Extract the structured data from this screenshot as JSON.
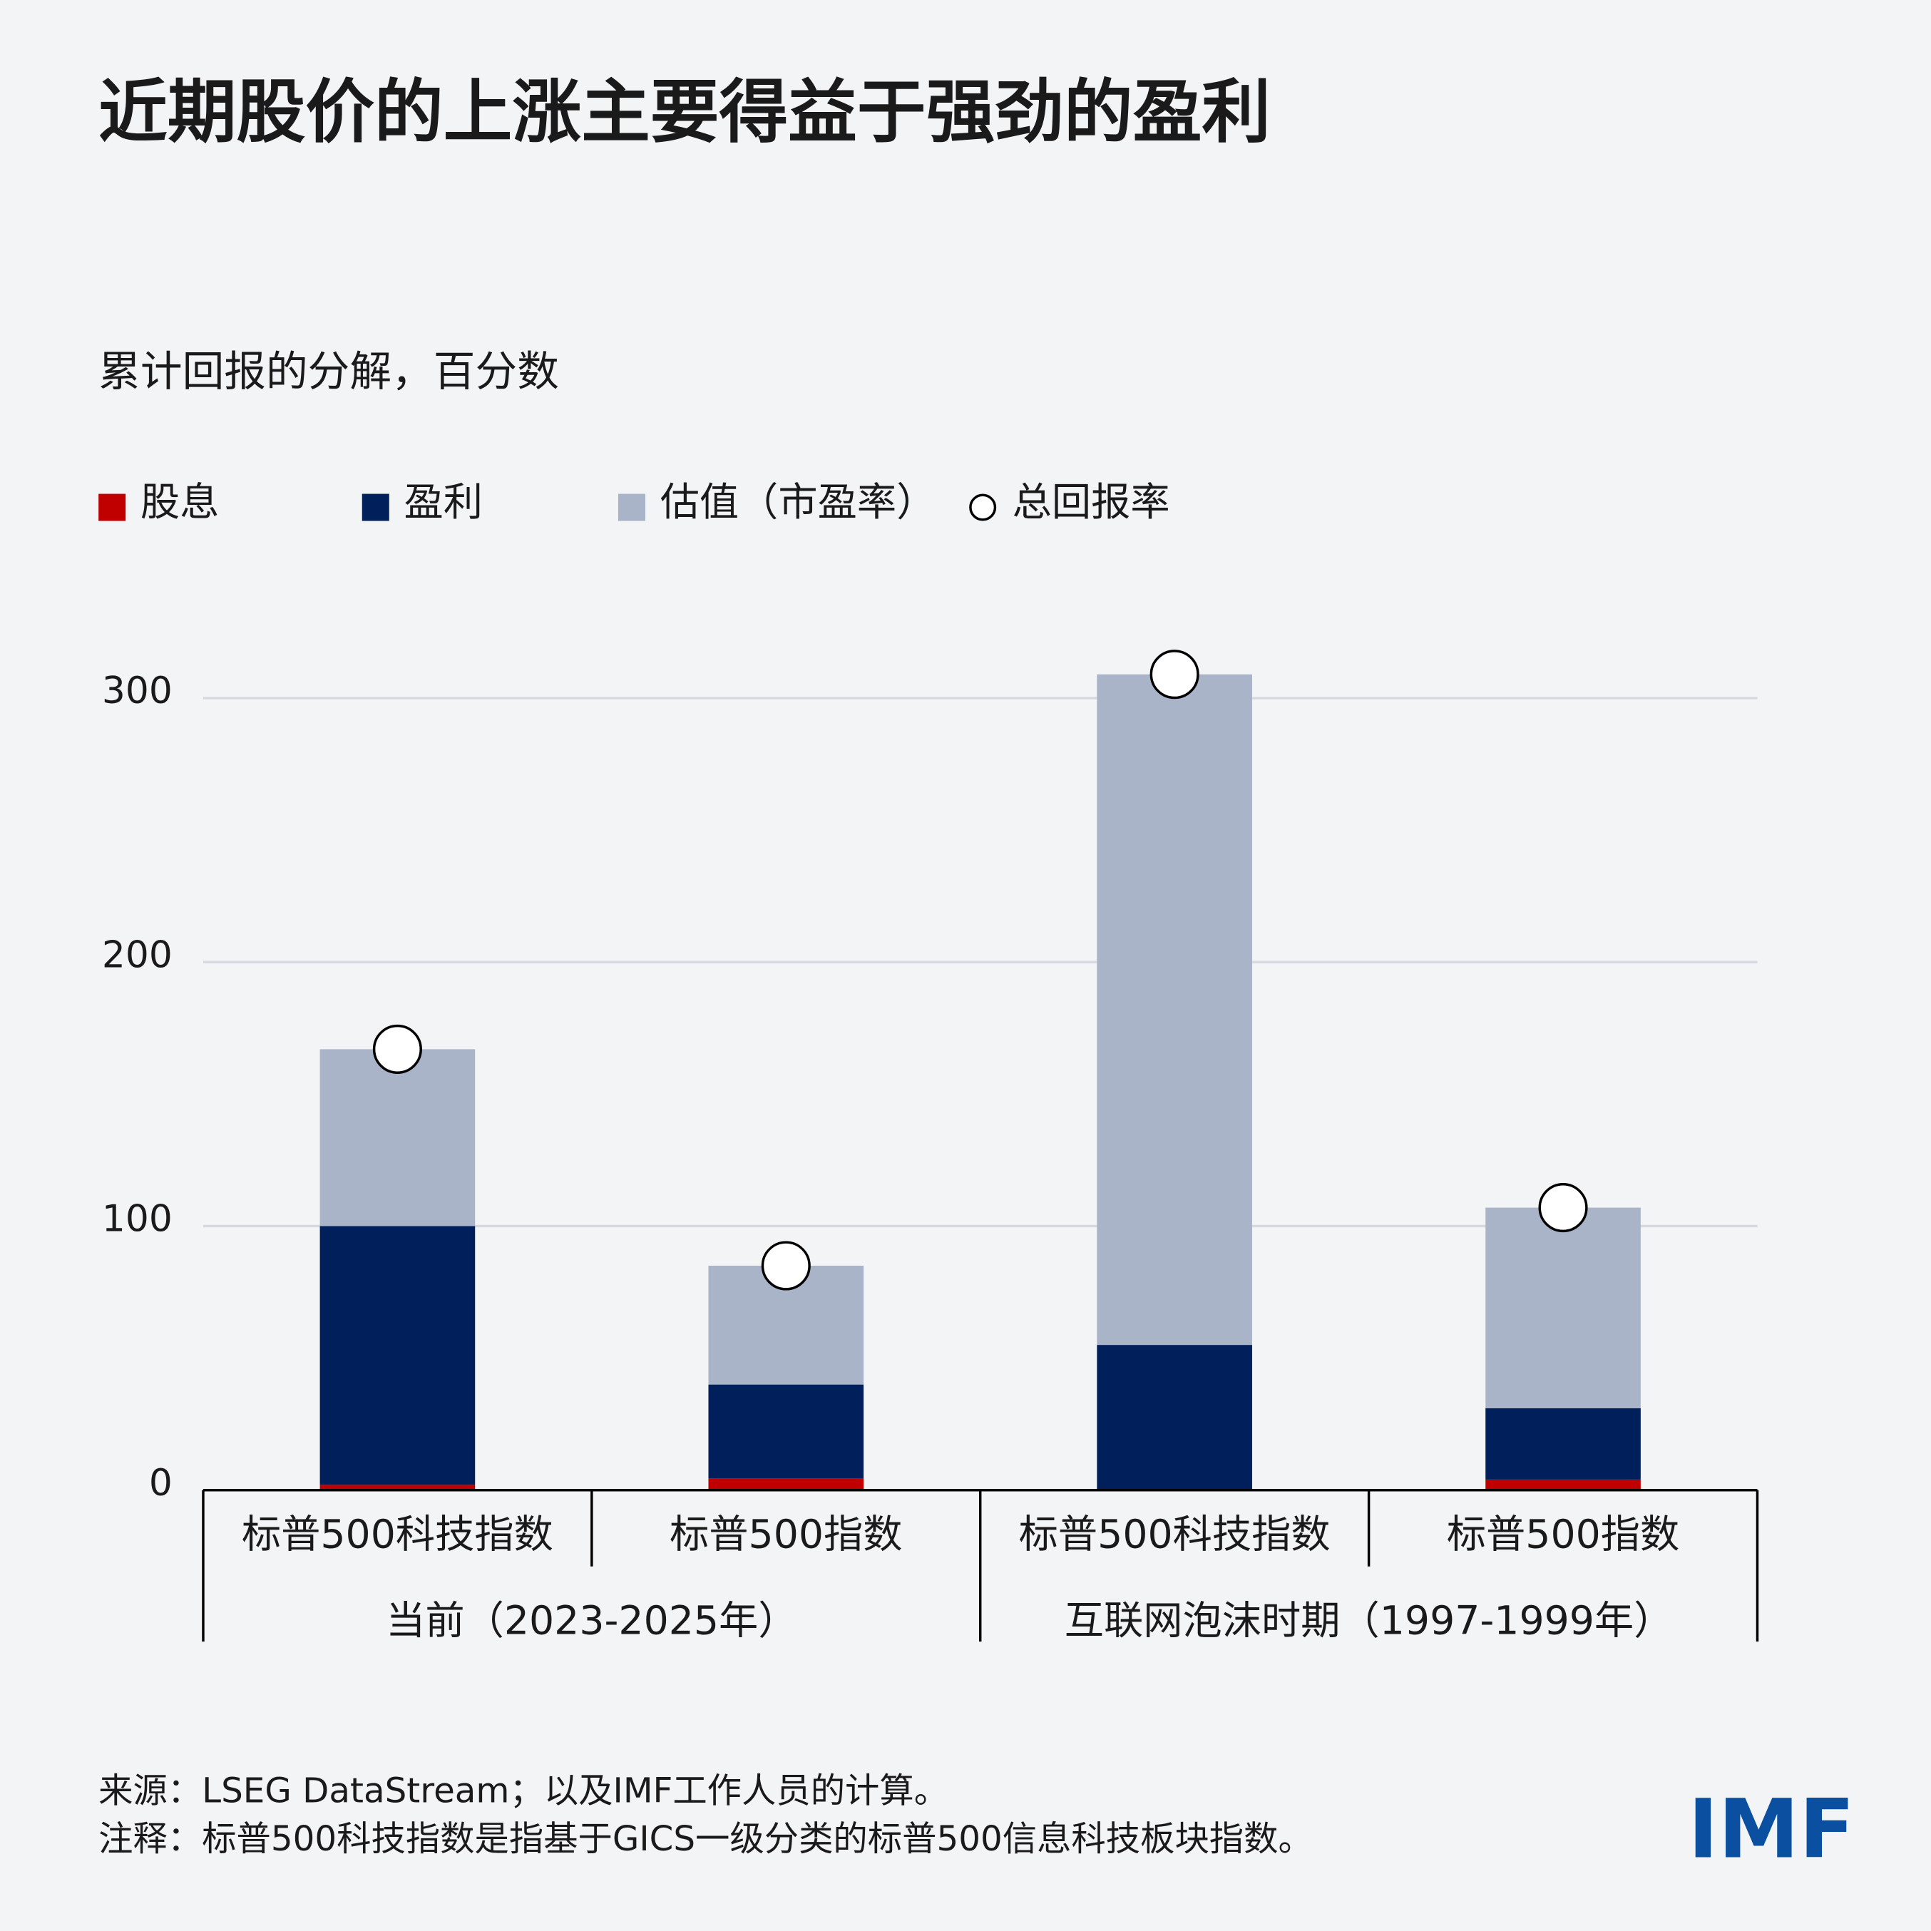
{
  "chart_data": {
    "type": "stacked_bar",
    "title": "近期股价的上涨主要得益于强劲的盈利",
    "subtitle": "累计回报的分解，百分数",
    "categories": [
      "标普500科技指数",
      "标普500指数",
      "标普500科技指数",
      "标普500指数"
    ],
    "groups": [
      "当前（2023-2025年）",
      "互联网泡沫时期（1997-1999年）"
    ],
    "series": [
      {
        "name": "股息",
        "color": "#c00000",
        "values": [
          2,
          4.5,
          0,
          4
        ]
      },
      {
        "name": "盈利",
        "color": "#001f5b",
        "values": [
          98,
          35.5,
          55,
          27
        ]
      },
      {
        "name": "估值（市盈率）",
        "color": "#a9b4c8",
        "values": [
          67,
          45,
          254,
          76
        ]
      }
    ],
    "total": {
      "name": "总回报率",
      "color": "#ffffff",
      "values": [
        167,
        85,
        309,
        107
      ]
    },
    "ylim": [
      0,
      320
    ],
    "yticks": [
      0,
      100,
      200,
      300
    ],
    "grid": true,
    "source": "来源：LSEG DataStream；以及IMF工作人员的计算。",
    "note": "注释：标普500科技指数是指基于GICS一级分类的标普500信息科技板块指数。",
    "logo": "IMF"
  }
}
